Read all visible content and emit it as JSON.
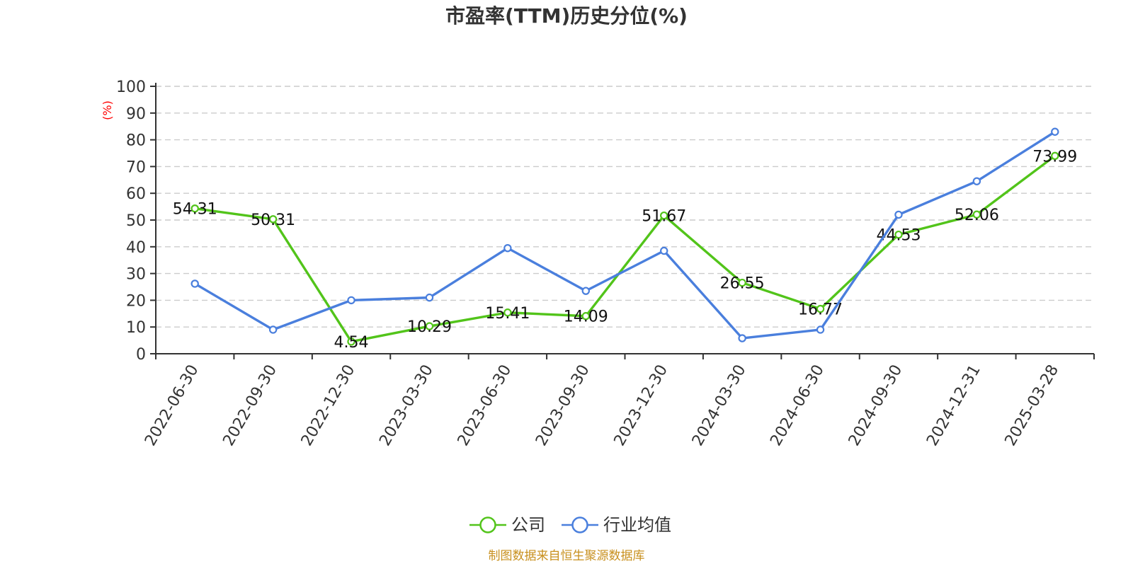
{
  "chart_data": {
    "type": "line",
    "title": "市盈率(TTM)历史分位(%)",
    "ylabel": "(%)",
    "xlabel": "",
    "ylim": [
      0,
      100
    ],
    "yticks": [
      0,
      10,
      20,
      30,
      40,
      50,
      60,
      70,
      80,
      90,
      100
    ],
    "grid": true,
    "legend_position": "bottom-center",
    "categories": [
      "2022-06-30",
      "2022-09-30",
      "2022-12-30",
      "2023-03-30",
      "2023-06-30",
      "2023-09-30",
      "2023-12-30",
      "2024-03-30",
      "2024-06-30",
      "2024-09-30",
      "2024-12-31",
      "2025-03-28"
    ],
    "series": [
      {
        "name": "公司",
        "color": "#52c41a",
        "values": [
          54.31,
          50.31,
          4.54,
          10.29,
          15.41,
          14.09,
          51.67,
          26.55,
          16.77,
          44.53,
          52.06,
          73.99
        ],
        "labels": [
          "54.31",
          "50.31",
          "4.54",
          "10.29",
          "15.41",
          "14.09",
          "51.67",
          "26.55",
          "16.77",
          "44.53",
          "52.06",
          "73.99"
        ]
      },
      {
        "name": "行业均值",
        "color": "#4a7fdd",
        "values": [
          26.2,
          9.0,
          20.0,
          21.0,
          39.5,
          23.5,
          38.5,
          5.8,
          9.0,
          52.0,
          64.5,
          83.0
        ]
      }
    ]
  },
  "source": {
    "text": "制图数据来自恒生聚源数据库",
    "color": "#c8901e"
  },
  "colors": {
    "axis": "#333333",
    "grid": "#cccccc",
    "ylabel": "#ff0000",
    "background": "#ffffff"
  }
}
